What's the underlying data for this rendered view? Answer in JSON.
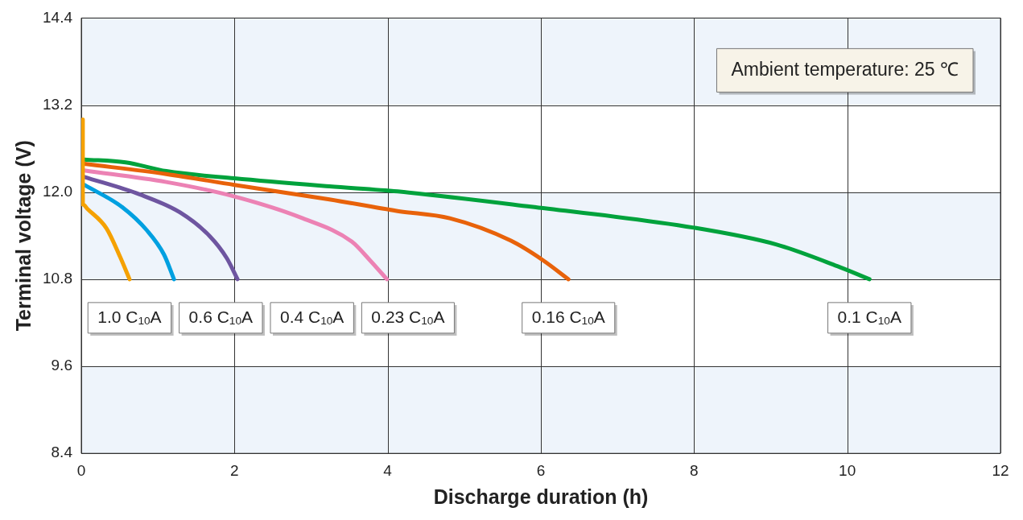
{
  "chart_data": {
    "type": "line",
    "xlabel": "Discharge duration (h)",
    "ylabel": "Terminal voltage (V)",
    "xlim": [
      0,
      12
    ],
    "xticks": [
      0,
      2,
      4,
      6,
      8,
      10,
      12
    ],
    "ylim": [
      8.4,
      14.4
    ],
    "yticks": [
      8.4,
      9.6,
      10.8,
      {
        "value": 12,
        "label": "12.0"
      },
      13.2,
      14.4
    ],
    "grid": true,
    "legend": false,
    "line_style": "solid",
    "marker": "none",
    "bands": [
      {
        "axis": "y",
        "from": 8.4,
        "to": 9.6,
        "color": "#eef4fb"
      },
      {
        "axis": "y",
        "from": 10.8,
        "to": 12.0,
        "color": "#eef4fb"
      },
      {
        "axis": "y",
        "from": 13.2,
        "to": 14.4,
        "color": "#eef4fb"
      }
    ],
    "series": [
      {
        "color": "#f5a100",
        "x": [
          0.02,
          0.02,
          0.08,
          0.33,
          0.51,
          0.63
        ],
        "values": [
          13.0,
          11.83,
          11.77,
          11.5,
          11.1,
          10.8
        ]
      },
      {
        "color": "#00a0e0",
        "x": [
          0.04,
          0.54,
          0.86,
          1.08,
          1.21
        ],
        "values": [
          12.1,
          11.79,
          11.47,
          11.14,
          10.8
        ]
      },
      {
        "color": "#6e55a0",
        "x": [
          0.04,
          0.76,
          1.29,
          1.68,
          1.9,
          2.04
        ],
        "values": [
          12.21,
          11.97,
          11.72,
          11.39,
          11.09,
          10.8
        ]
      },
      {
        "color": "#ec82b4",
        "x": [
          0.04,
          1.11,
          2.0,
          2.89,
          3.53,
          3.77,
          3.99
        ],
        "values": [
          12.3,
          12.14,
          11.94,
          11.64,
          11.32,
          11.06,
          10.8
        ]
      },
      {
        "color": "#e8620a",
        "x": [
          0.04,
          1.11,
          2.0,
          3.24,
          4.13,
          4.81,
          5.61,
          6.03,
          6.36
        ],
        "values": [
          12.39,
          12.25,
          12.1,
          11.9,
          11.74,
          11.64,
          11.33,
          11.06,
          10.8
        ]
      },
      {
        "color": "#00a23c",
        "x": [
          0.04,
          0.58,
          1.11,
          2.0,
          3.24,
          4.13,
          5.87,
          8.0,
          9.07,
          9.87,
          10.29
        ],
        "values": [
          12.45,
          12.41,
          12.29,
          12.19,
          12.08,
          12.01,
          11.8,
          11.51,
          11.28,
          10.98,
          10.8
        ]
      }
    ],
    "annotations": [
      "Ambient temperature: 25 ℃",
      "1.0 C$_{10}$A",
      "0.6 C$_{10}$A",
      "0.4 C$_{10}$A",
      "0.23 C$_{10}$A",
      "0.16 C$_{10}$A",
      "0.1 C$_{10}$A"
    ]
  }
}
